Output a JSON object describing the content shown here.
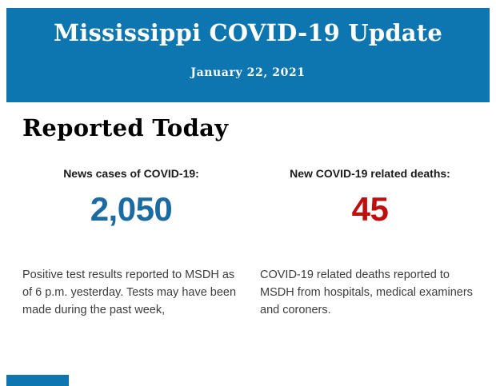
{
  "theme": {
    "header_blue": "#0d76b0",
    "cases_blue": "#1b6ba3",
    "deaths_red": "#c00d0e"
  },
  "header": {
    "title": "Mississippi COVID-19 Update",
    "date": "January 22, 2021"
  },
  "main": {
    "section_title": "Reported Today",
    "stats": [
      {
        "label": "News cases of COVID-19:",
        "value": "2,050",
        "color": "#1b6ba3",
        "description_lines": [
          "Positive test results reported to MSDH as",
          "of 6 p.m. yesterday. Tests may have been",
          "made during the past week,"
        ]
      },
      {
        "label": "New COVID-19 related deaths:",
        "value": "45",
        "color": "#c00d0e",
        "description_lines": [
          "COVID-19 related deaths reported to",
          "MSDH from hospitals, medical examiners",
          "and coroners."
        ]
      }
    ]
  }
}
